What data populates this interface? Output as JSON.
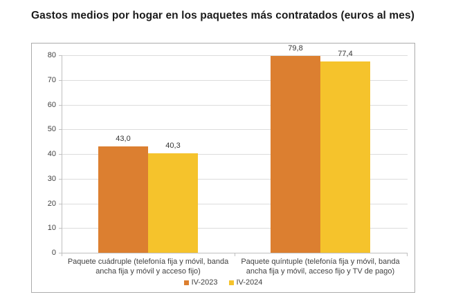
{
  "title": "Gastos medios por hogar en los paquetes más contratados (euros al mes)",
  "chart_data": {
    "type": "bar",
    "title": "Gastos medios por hogar en los paquetes más contratados (euros al mes)",
    "categories": [
      "Paquete cuádruple (telefonía fija y móvil, banda ancha fija y móvil y acceso fijo)",
      "Paquete quíntuple (telefonía fija y móvil, banda ancha fija y móvil, acceso fijo y TV de pago)"
    ],
    "series": [
      {
        "name": "IV-2023",
        "color": "#DC7F30",
        "values": [
          43.0,
          79.8
        ],
        "value_labels": [
          "43,0",
          "79,8"
        ]
      },
      {
        "name": "IV-2024",
        "color": "#F5C32C",
        "values": [
          40.3,
          77.4
        ],
        "value_labels": [
          "40,3",
          "77,4"
        ]
      }
    ],
    "xlabel": "",
    "ylabel": "",
    "ylim": [
      0,
      80
    ],
    "yticks": [
      0,
      10,
      20,
      30,
      40,
      50,
      60,
      70,
      80
    ],
    "grid": true,
    "legend_position": "bottom",
    "style": {
      "grid_color": "#dcdcdc",
      "axis_color": "#bfbfbf",
      "tick_label_color": "#404040",
      "data_label_color": "#333333"
    }
  }
}
